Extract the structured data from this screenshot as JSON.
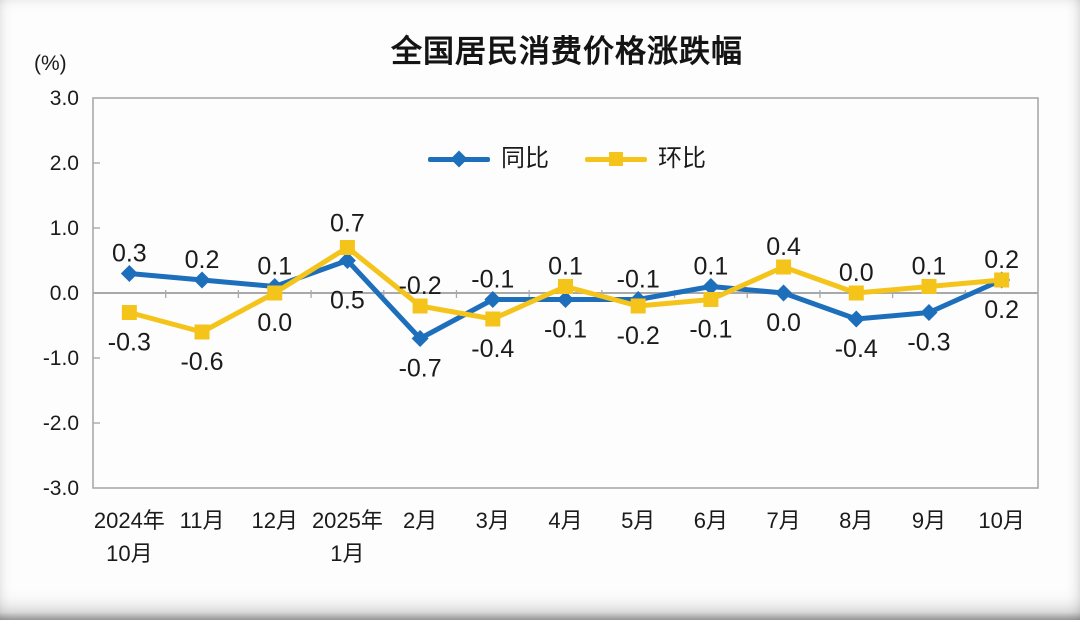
{
  "chart_data": {
    "type": "line",
    "title": "全国居民消费价格涨跌幅",
    "ylabel": "(%)",
    "xlabel": "",
    "ylim": [
      -3.0,
      3.0
    ],
    "ytick_labels": [
      "3.0",
      "2.0",
      "1.0",
      "0.0",
      "-1.0",
      "-2.0",
      "-3.0"
    ],
    "grid": false,
    "legend_position": "top-center-inside",
    "axis_color": "#a9a9a9",
    "text_color": "#1b1b1b",
    "categories": [
      "2024年\n10月",
      "11月",
      "12月",
      "2025年\n1月",
      "2月",
      "3月",
      "4月",
      "5月",
      "6月",
      "7月",
      "8月",
      "9月",
      "10月"
    ],
    "series": [
      {
        "name": "同比",
        "marker": "diamond",
        "color": "#1e6fbb",
        "values": [
          0.3,
          0.2,
          0.1,
          0.5,
          -0.7,
          -0.1,
          -0.1,
          -0.1,
          0.1,
          0.0,
          -0.4,
          -0.3,
          0.2
        ],
        "label_positions": [
          "above",
          "above",
          "above",
          "below",
          "below",
          "above",
          "below",
          "above",
          "above",
          "below",
          "below",
          "below",
          "below"
        ],
        "label_dy": [
          0,
          0,
          0,
          10,
          0,
          0,
          0,
          0,
          0,
          0,
          0,
          0,
          0
        ]
      },
      {
        "name": "环比",
        "marker": "square",
        "color": "#f5c41a",
        "values": [
          -0.3,
          -0.6,
          0.0,
          0.7,
          -0.2,
          -0.4,
          0.1,
          -0.2,
          -0.1,
          0.4,
          0.0,
          0.1,
          0.2
        ],
        "label_positions": [
          "below",
          "below",
          "below",
          "above",
          "above",
          "below",
          "above",
          "below",
          "below",
          "above",
          "above",
          "above",
          "above"
        ],
        "label_dy": [
          0,
          0,
          0,
          -4,
          0,
          0,
          0,
          0,
          0,
          0,
          0,
          0,
          0
        ]
      }
    ]
  }
}
